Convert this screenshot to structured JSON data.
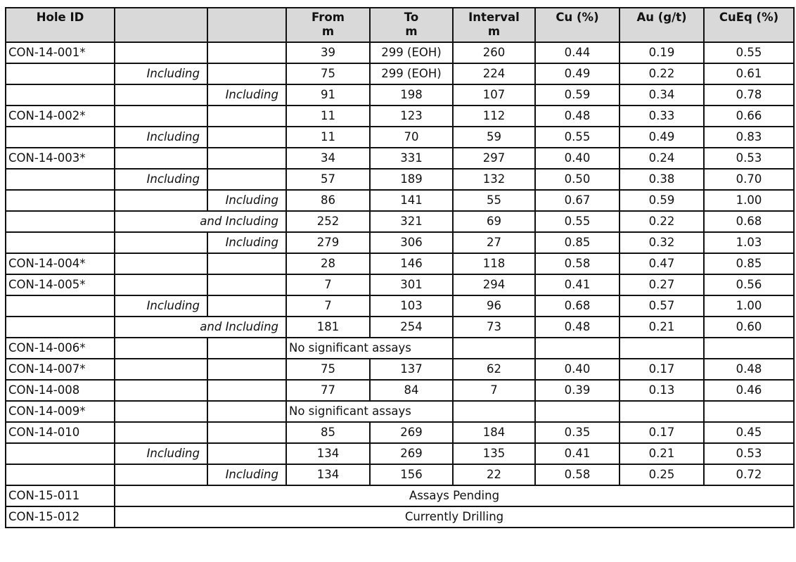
{
  "header": {
    "hole_id": "Hole ID",
    "blank1": "",
    "blank2": "",
    "from": "From",
    "from_unit": "m",
    "to": "To",
    "to_unit": "m",
    "interval": "Interval",
    "interval_unit": "m",
    "cu": "Cu (%)",
    "au": "Au (g/t)",
    "cueq": "CuEq (%)"
  },
  "rows": [
    {
      "hole": "CON-14-001*",
      "level": 0,
      "label": "",
      "from": "39",
      "to": "299 (EOH)",
      "interval": "260",
      "cu": "0.44",
      "au": "0.19",
      "cueq": "0.55"
    },
    {
      "hole": "",
      "level": 1,
      "label": "Including",
      "from": "75",
      "to": "299 (EOH)",
      "interval": "224",
      "cu": "0.49",
      "au": "0.22",
      "cueq": "0.61"
    },
    {
      "hole": "",
      "level": 2,
      "label": "Including",
      "from": "91",
      "to": "198",
      "interval": "107",
      "cu": "0.59",
      "au": "0.34",
      "cueq": "0.78"
    },
    {
      "hole": "CON-14-002*",
      "level": 0,
      "label": "",
      "from": "11",
      "to": "123",
      "interval": "112",
      "cu": "0.48",
      "au": "0.33",
      "cueq": "0.66"
    },
    {
      "hole": "",
      "level": 1,
      "label": "Including",
      "from": "11",
      "to": "70",
      "interval": "59",
      "cu": "0.55",
      "au": "0.49",
      "cueq": "0.83"
    },
    {
      "hole": "CON-14-003*",
      "level": 0,
      "label": "",
      "from": "34",
      "to": "331",
      "interval": "297",
      "cu": "0.40",
      "au": "0.24",
      "cueq": "0.53"
    },
    {
      "hole": "",
      "level": 1,
      "label": "Including",
      "from": "57",
      "to": "189",
      "interval": "132",
      "cu": "0.50",
      "au": "0.38",
      "cueq": "0.70"
    },
    {
      "hole": "",
      "level": 2,
      "label": "Including",
      "from": "86",
      "to": "141",
      "interval": "55",
      "cu": "0.67",
      "au": "0.59",
      "cueq": "1.00"
    },
    {
      "hole": "",
      "level": "merged",
      "label": "and Including",
      "from": "252",
      "to": "321",
      "interval": "69",
      "cu": "0.55",
      "au": "0.22",
      "cueq": "0.68"
    },
    {
      "hole": "",
      "level": 2,
      "label": "Including",
      "from": "279",
      "to": "306",
      "interval": "27",
      "cu": "0.85",
      "au": "0.32",
      "cueq": "1.03"
    },
    {
      "hole": "CON-14-004*",
      "level": 0,
      "label": "",
      "from": "28",
      "to": "146",
      "interval": "118",
      "cu": "0.58",
      "au": "0.47",
      "cueq": "0.85"
    },
    {
      "hole": "CON-14-005*",
      "level": 0,
      "label": "",
      "from": "7",
      "to": "301",
      "interval": "294",
      "cu": "0.41",
      "au": "0.27",
      "cueq": "0.56"
    },
    {
      "hole": "",
      "level": 1,
      "label": "Including",
      "from": "7",
      "to": "103",
      "interval": "96",
      "cu": "0.68",
      "au": "0.57",
      "cueq": "1.00"
    },
    {
      "hole": "",
      "level": "merged",
      "label": "and Including",
      "from": "181",
      "to": "254",
      "interval": "73",
      "cu": "0.48",
      "au": "0.21",
      "cueq": "0.60"
    },
    {
      "hole": "CON-14-006*",
      "note": "No significant assays",
      "note_type": "left"
    },
    {
      "hole": "CON-14-007*",
      "level": 0,
      "label": "",
      "from": "75",
      "to": "137",
      "interval": "62",
      "cu": "0.40",
      "au": "0.17",
      "cueq": "0.48"
    },
    {
      "hole": "CON-14-008",
      "level": 0,
      "label": "",
      "from": "77",
      "to": "84",
      "interval": "7",
      "cu": "0.39",
      "au": "0.13",
      "cueq": "0.46"
    },
    {
      "hole": "CON-14-009*",
      "note": "No significant assays",
      "note_type": "left"
    },
    {
      "hole": "CON-14-010",
      "level": 0,
      "label": "",
      "from": "85",
      "to": "269",
      "interval": "184",
      "cu": "0.35",
      "au": "0.17",
      "cueq": "0.45"
    },
    {
      "hole": "",
      "level": 1,
      "label": "Including",
      "from": "134",
      "to": "269",
      "interval": "135",
      "cu": "0.41",
      "au": "0.21",
      "cueq": "0.53"
    },
    {
      "hole": "",
      "level": 2,
      "label": "Including",
      "from": "134",
      "to": "156",
      "interval": "22",
      "cu": "0.58",
      "au": "0.25",
      "cueq": "0.72"
    },
    {
      "hole": "CON-15-011",
      "note": "Assays Pending",
      "note_type": "center"
    },
    {
      "hole": "CON-15-012",
      "note": "Currently Drilling",
      "note_type": "center"
    }
  ]
}
